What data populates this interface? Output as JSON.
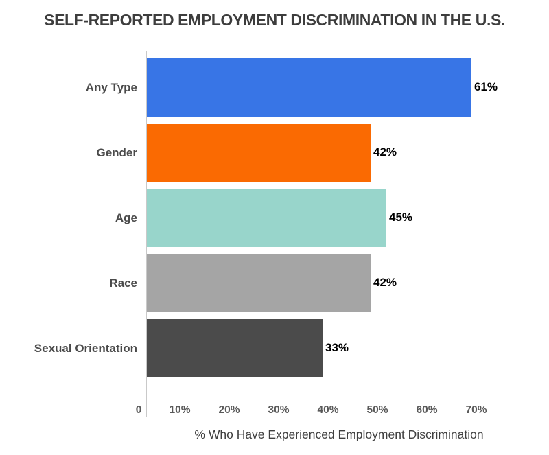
{
  "title": "SELF-REPORTED EMPLOYMENT DISCRIMINATION IN THE U.S.",
  "chart_data": {
    "type": "bar",
    "orientation": "horizontal",
    "title": "SELF-REPORTED EMPLOYMENT DISCRIMINATION IN THE U.S.",
    "categories": [
      "Any Type",
      "Gender",
      "Age",
      "Race",
      "Sexual Orientation"
    ],
    "values": [
      61,
      42,
      45,
      42,
      33
    ],
    "value_labels": [
      "61%",
      "42%",
      "45%",
      "42%",
      "33%"
    ],
    "bar_colors": [
      "#3875e6",
      "#fa6a02",
      "#98d5cb",
      "#a5a5a5",
      "#4b4b4b"
    ],
    "xlabel": "% Who Have Experienced Employment Discrimination",
    "ylabel": "",
    "x_ticks": [
      "0",
      "10%",
      "20%",
      "30%",
      "40%",
      "50%",
      "60%",
      "70%"
    ],
    "xlim": [
      0,
      70
    ],
    "grid": false,
    "legend": false
  },
  "colors": {
    "background": "#ffffff",
    "title_text": "#3d3d3d",
    "category_text": "#4a4a4a",
    "value_text": "#000000",
    "tick_text": "#595959",
    "axis_line": "#c9c9c9",
    "axis_title_text": "#3f3f3f"
  }
}
